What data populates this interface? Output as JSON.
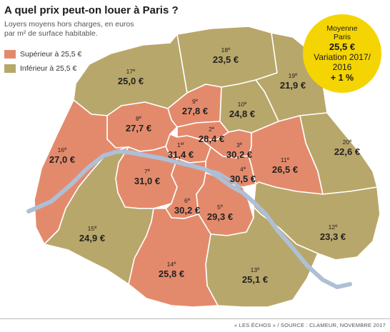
{
  "title": "A quel prix peut-on louer à Paris ?",
  "subtitle_line1": "Loyers moyens hors charges, en euros",
  "subtitle_line2": "par m² de surface habitable.",
  "legend": [
    {
      "label": "Supérieur à 25,5 €",
      "color": "#e48a6c"
    },
    {
      "label": "Inférieur à 25,5 €",
      "color": "#b8a76a"
    }
  ],
  "average_badge": {
    "line1": "Moyenne",
    "line2": "Paris",
    "value": "25,5 €",
    "variation_label_1": "Variation 2017/",
    "variation_label_2": "2016",
    "variation_value": "+ 1 %",
    "color": "#f4d503"
  },
  "colors": {
    "above": "#e48a6c",
    "below": "#b8a76a",
    "seine": "#aebfd6",
    "border": "#ffffff"
  },
  "arrondissements": [
    {
      "id": "1",
      "label": "1er",
      "value": "31,4 €",
      "category": "above"
    },
    {
      "id": "2",
      "label": "2e",
      "value": "28,4 €",
      "category": "above"
    },
    {
      "id": "3",
      "label": "3e",
      "value": "30,2 €",
      "category": "above"
    },
    {
      "id": "4",
      "label": "4e",
      "value": "30,5 €",
      "category": "above"
    },
    {
      "id": "5",
      "label": "5e",
      "value": "29,3 €",
      "category": "above"
    },
    {
      "id": "6",
      "label": "6e",
      "value": "30,2 €",
      "category": "above"
    },
    {
      "id": "7",
      "label": "7e",
      "value": "31,0 €",
      "category": "above"
    },
    {
      "id": "8",
      "label": "8e",
      "value": "27,7 €",
      "category": "above"
    },
    {
      "id": "9",
      "label": "9e",
      "value": "27,8 €",
      "category": "above"
    },
    {
      "id": "10",
      "label": "10e",
      "value": "24,8 €",
      "category": "below"
    },
    {
      "id": "11",
      "label": "11e",
      "value": "26,5 €",
      "category": "above"
    },
    {
      "id": "12",
      "label": "12e",
      "value": "23,3 €",
      "category": "below"
    },
    {
      "id": "13",
      "label": "13e",
      "value": "25,1 €",
      "category": "below"
    },
    {
      "id": "14",
      "label": "14e",
      "value": "25,8 €",
      "category": "above"
    },
    {
      "id": "15",
      "label": "15e",
      "value": "24,9 €",
      "category": "below"
    },
    {
      "id": "16",
      "label": "16e",
      "value": "27,0 €",
      "category": "above"
    },
    {
      "id": "17",
      "label": "17e",
      "value": "25,0 €",
      "category": "below"
    },
    {
      "id": "18",
      "label": "18e",
      "value": "23,5 €",
      "category": "below"
    },
    {
      "id": "19",
      "label": "19e",
      "value": "21,9 €",
      "category": "below"
    },
    {
      "id": "20",
      "label": "20e",
      "value": "22,6 €",
      "category": "below"
    }
  ],
  "footer": "« LES ÉCHOS » / SOURCE : CLAMEUR, NOVEMBRE 2017"
}
